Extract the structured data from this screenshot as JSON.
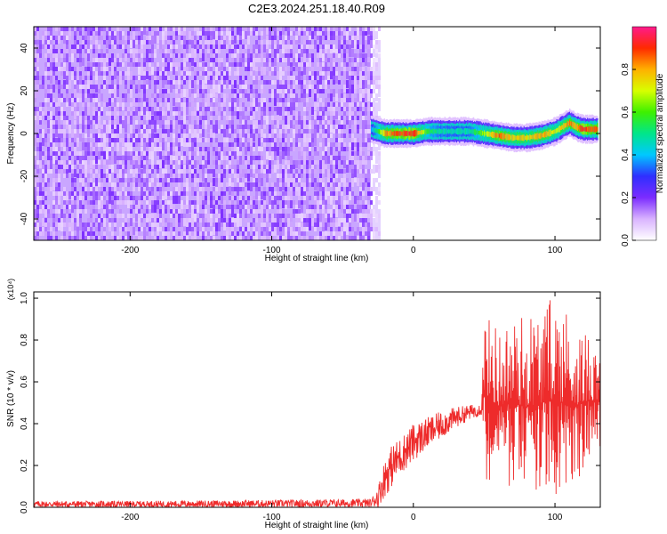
{
  "title": "C2E3.2024.251.18.40.R09",
  "chart_data": [
    {
      "type": "heatmap",
      "xlabel": "Height of straight line (km)",
      "ylabel": "Frequency (Hz)",
      "xlim": [
        -268,
        132
      ],
      "ylim": [
        -50,
        50
      ],
      "xticks": [
        -200,
        -100,
        0,
        100
      ],
      "yticks": [
        -40,
        -20,
        0,
        20,
        40
      ],
      "colorbar": {
        "label": "Normalized spectral amplitude",
        "ticks": [
          "0.0",
          "0.2",
          "0.4",
          "0.6",
          "0.8"
        ],
        "range": [
          0,
          1
        ],
        "colormap": [
          "#ffffff",
          "#d9b3ff",
          "#7b2cff",
          "#2f2fff",
          "#00c8ff",
          "#00e68a",
          "#3ef000",
          "#d8ff00",
          "#ffb000",
          "#ff2a00",
          "#ff1a8c"
        ]
      },
      "noise_region": {
        "x_start": -268,
        "x_end": -30,
        "dominant_value": 0.12
      },
      "signal_trace": {
        "x": [
          -30,
          -20,
          -10,
          0,
          10,
          20,
          30,
          40,
          50,
          60,
          70,
          80,
          90,
          100,
          105,
          110,
          115,
          120,
          130
        ],
        "freq": [
          2,
          0,
          0,
          0,
          1,
          1,
          1,
          1,
          0,
          -1,
          -2,
          -2,
          -1,
          1,
          3,
          5,
          3,
          2,
          2
        ],
        "peak_amplitude": [
          0.4,
          0.85,
          0.95,
          0.95,
          0.6,
          0.5,
          0.5,
          0.5,
          0.7,
          0.9,
          0.8,
          0.8,
          0.85,
          0.75,
          0.8,
          0.9,
          0.85,
          0.95,
          0.9
        ]
      }
    },
    {
      "type": "line",
      "xlabel": "Height of straight line (km)",
      "ylabel": "SNR (10 * v/v)",
      "y_multiplier": "(x10⁴)",
      "xlim": [
        -268,
        132
      ],
      "ylim": [
        0,
        1.03
      ],
      "xticks": [
        -200,
        -100,
        0,
        100
      ],
      "yticks": [
        "0.0",
        "0.2",
        "0.4",
        "0.6",
        "0.8",
        "1.0"
      ],
      "series": [
        {
          "color": "#ee2b2b",
          "x": [
            -268,
            -200,
            -100,
            -30,
            -25,
            -20,
            -15,
            -10,
            0,
            10,
            20,
            30,
            40,
            48,
            50,
            60,
            70,
            80,
            90,
            100,
            110,
            120,
            132
          ],
          "y": [
            0.015,
            0.015,
            0.02,
            0.02,
            0.05,
            0.15,
            0.22,
            0.26,
            0.31,
            0.36,
            0.4,
            0.44,
            0.46,
            0.48,
            0.55,
            0.48,
            0.5,
            0.48,
            0.5,
            0.52,
            0.48,
            0.5,
            0.52
          ],
          "envelope_min": [
            0.0,
            0.0,
            0.0,
            0.0,
            0.0,
            0.05,
            0.1,
            0.15,
            0.22,
            0.28,
            0.33,
            0.38,
            0.42,
            0.44,
            0.1,
            0.1,
            0.08,
            0.05,
            0.05,
            0.05,
            0.1,
            0.15,
            0.25
          ],
          "envelope_max": [
            0.03,
            0.03,
            0.035,
            0.04,
            0.1,
            0.24,
            0.3,
            0.33,
            0.4,
            0.43,
            0.46,
            0.48,
            0.49,
            0.5,
            0.93,
            0.87,
            0.9,
            0.95,
            0.95,
            1.03,
            0.96,
            0.82,
            0.88
          ]
        }
      ]
    }
  ]
}
